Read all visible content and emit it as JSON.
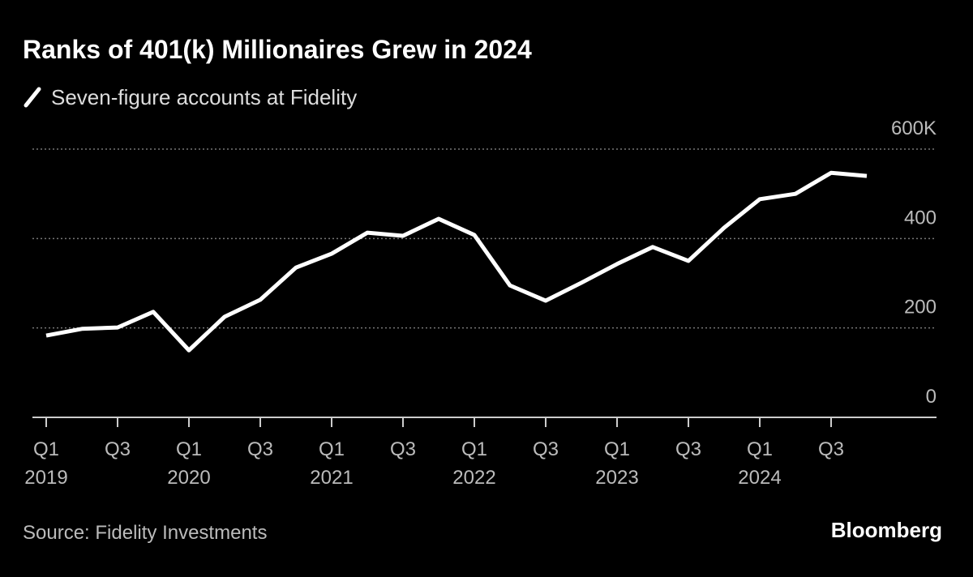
{
  "chart_data": {
    "type": "line",
    "title": "Ranks of 401(k) Millionaires Grew in 2024",
    "source": "Source: Fidelity Investments",
    "brand": "Bloomberg",
    "categories": [
      [
        "Q1",
        "2019"
      ],
      null,
      [
        "Q3"
      ],
      null,
      [
        "Q1",
        "2020"
      ],
      null,
      [
        "Q3"
      ],
      null,
      [
        "Q1",
        "2021"
      ],
      null,
      [
        "Q3"
      ],
      null,
      [
        "Q1",
        "2022"
      ],
      null,
      [
        "Q3"
      ],
      null,
      [
        "Q1",
        "2023"
      ],
      null,
      [
        "Q3"
      ],
      null,
      [
        "Q1",
        "2024"
      ],
      null,
      [
        "Q3"
      ],
      null
    ],
    "series": [
      {
        "name": "Seven-figure accounts at Fidelity",
        "color": "#ffffff",
        "values": [
          183,
          198,
          201,
          236,
          150,
          225,
          263,
          335,
          366,
          413,
          406,
          444,
          408,
          295,
          261,
          301,
          343,
          381,
          350,
          424,
          488,
          500,
          547,
          540
        ]
      }
    ],
    "ylim": [
      0,
      600
    ],
    "yticks": [
      0,
      200,
      400,
      {
        "value": 600,
        "label": "600K"
      }
    ],
    "grid": true
  }
}
